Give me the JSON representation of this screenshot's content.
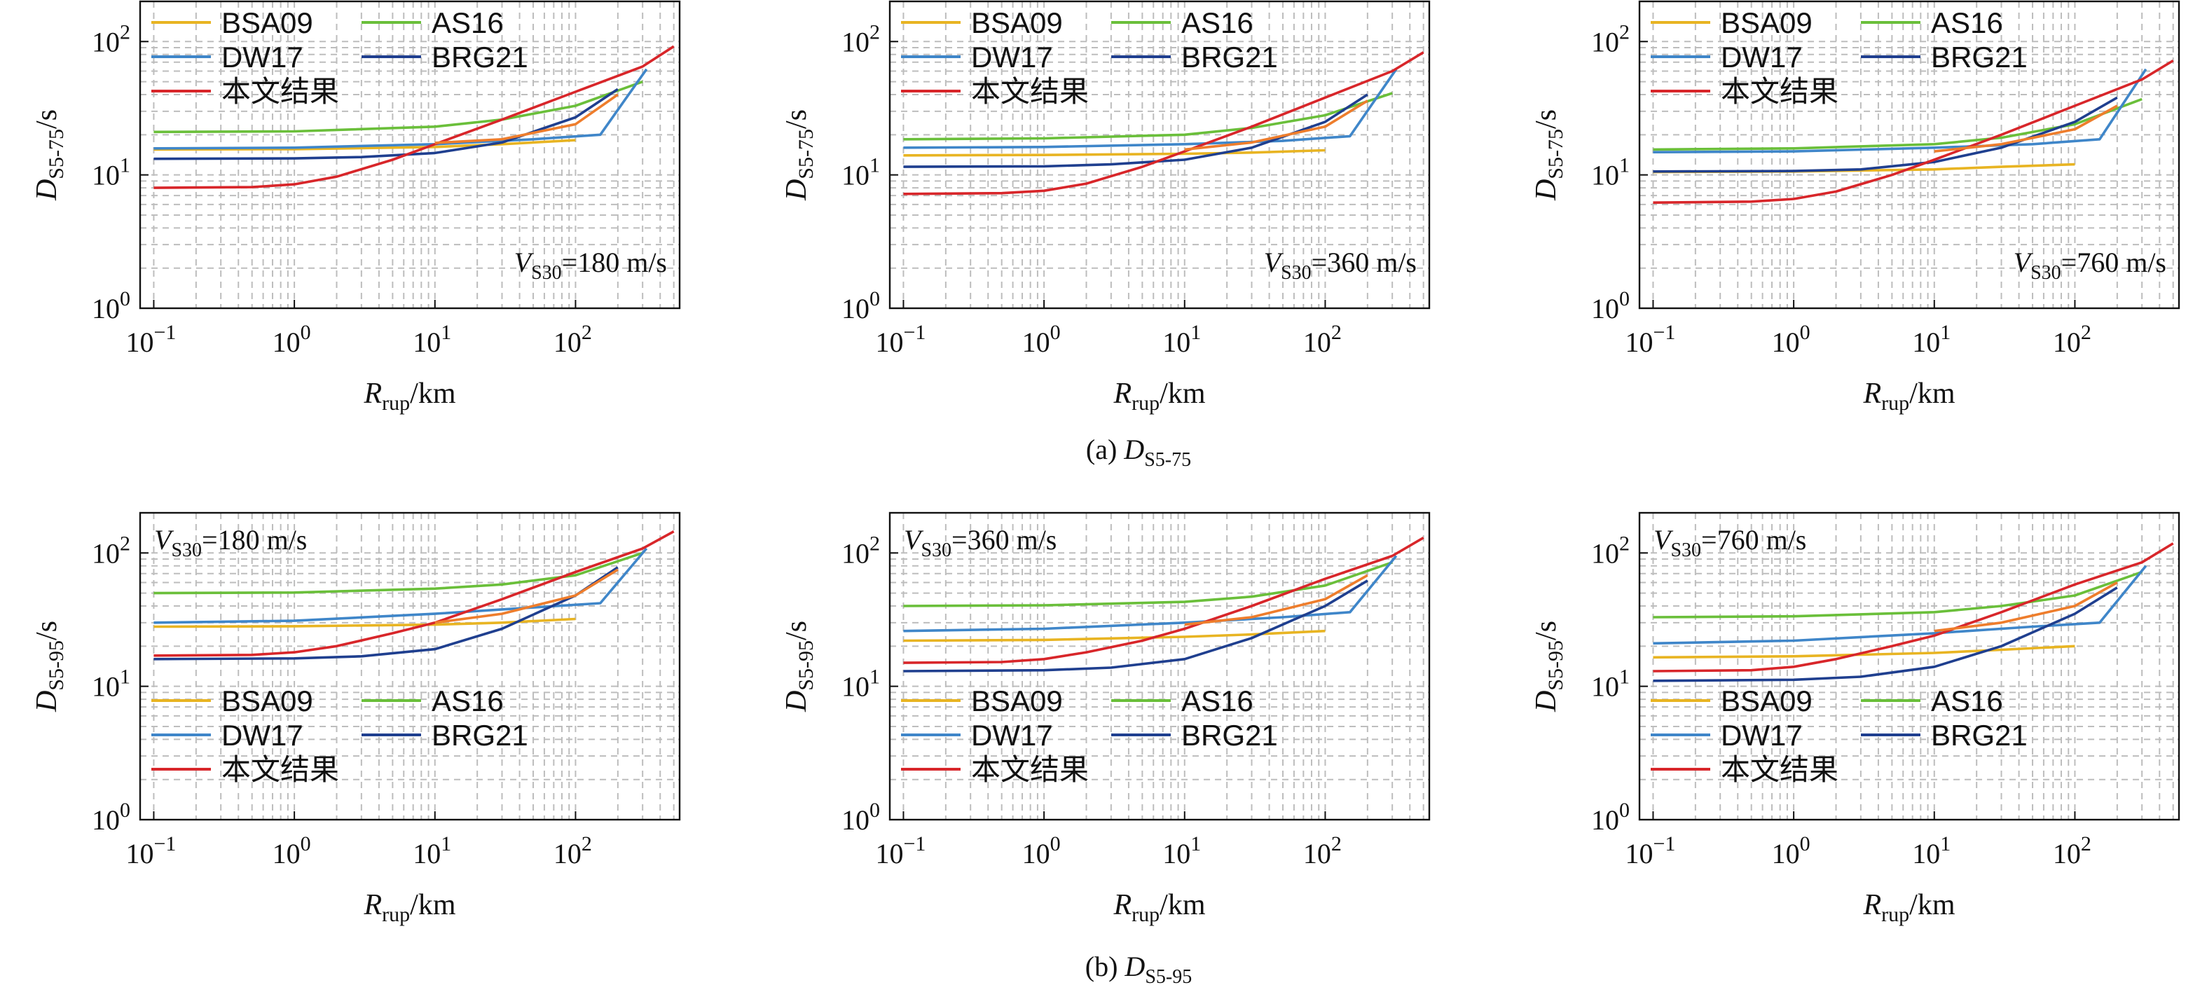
{
  "figure": {
    "row_captions": [
      {
        "prefix": "(a) ",
        "sym": "D",
        "sub": "S5-75"
      },
      {
        "prefix": "(b) ",
        "sym": "D",
        "sub": "S5-95"
      }
    ]
  },
  "common": {
    "xlabel": {
      "sym": "R",
      "sub": "rup",
      "unit": "/km"
    },
    "ylabels": [
      {
        "sym": "D",
        "sub": "S5-75",
        "unit": "/s"
      },
      {
        "sym": "D",
        "sub": "S5-95",
        "unit": "/s"
      }
    ],
    "xticks": [
      {
        "base": "10",
        "exp": "−1",
        "value": 0.1
      },
      {
        "base": "10",
        "exp": "0",
        "value": 1
      },
      {
        "base": "10",
        "exp": "1",
        "value": 10
      },
      {
        "base": "10",
        "exp": "2",
        "value": 100
      }
    ],
    "yticks": [
      {
        "base": "10",
        "exp": "0",
        "value": 1
      },
      {
        "base": "10",
        "exp": "1",
        "value": 10
      },
      {
        "base": "10",
        "exp": "2",
        "value": 100
      }
    ],
    "series_colors": {
      "BSA09": "#e8b422",
      "AS16": "#6abf3a",
      "DW17": "#3f86c9",
      "BRG21": "#1f3f8f",
      "本文结果": "#d8262a",
      "extra": "#ee7d2c"
    },
    "legend_entries": [
      "BSA09",
      "AS16",
      "DW17",
      "BRG21",
      "本文结果"
    ]
  },
  "chart_data": [
    {
      "type": "line",
      "panel": "a1",
      "scale": "log-log",
      "xlim": [
        0.08,
        550
      ],
      "ylim": [
        1,
        200
      ],
      "grid": true,
      "legend": "top-left",
      "vs30_label": {
        "sym": "V",
        "sub": "S30",
        "value": "=180 m/s",
        "position": "bottom-right"
      },
      "series": [
        {
          "name": "BSA09",
          "x": [
            0.1,
            1,
            10,
            30,
            100
          ],
          "y": [
            15.5,
            15.6,
            16.2,
            17,
            18.2
          ]
        },
        {
          "name": "AS16",
          "x": [
            0.1,
            1,
            10,
            30,
            100,
            300
          ],
          "y": [
            21,
            21.2,
            23,
            26,
            33,
            50
          ]
        },
        {
          "name": "DW17",
          "x": [
            0.1,
            1,
            10,
            50,
            150,
            320
          ],
          "y": [
            15.8,
            16,
            17,
            18.5,
            20,
            62
          ]
        },
        {
          "name": "BRG21",
          "x": [
            0.1,
            1,
            3,
            10,
            30,
            100,
            200
          ],
          "y": [
            13.2,
            13.3,
            13.6,
            14.6,
            17.5,
            27,
            44
          ]
        },
        {
          "name": "本文结果",
          "x": [
            0.1,
            0.5,
            1,
            2,
            5,
            10,
            30,
            100,
            300,
            500
          ],
          "y": [
            8,
            8.1,
            8.5,
            9.7,
            13,
            17,
            26,
            42,
            65,
            92
          ]
        },
        {
          "name": "",
          "color_key": "extra",
          "x": [
            10,
            30,
            100,
            200
          ],
          "y": [
            17.4,
            18.5,
            24,
            40
          ]
        }
      ]
    },
    {
      "type": "line",
      "panel": "a2",
      "scale": "log-log",
      "xlim": [
        0.08,
        550
      ],
      "ylim": [
        1,
        200
      ],
      "grid": true,
      "legend": "top-left",
      "vs30_label": {
        "sym": "V",
        "sub": "S30",
        "value": "=360 m/s",
        "position": "bottom-right"
      },
      "series": [
        {
          "name": "BSA09",
          "x": [
            0.1,
            1,
            10,
            30,
            100
          ],
          "y": [
            14,
            14.1,
            14.4,
            14.7,
            15.3
          ]
        },
        {
          "name": "AS16",
          "x": [
            0.1,
            1,
            10,
            30,
            100,
            300
          ],
          "y": [
            18.5,
            18.8,
            20,
            22.5,
            28,
            41
          ]
        },
        {
          "name": "DW17",
          "x": [
            0.1,
            1,
            10,
            50,
            150,
            320
          ],
          "y": [
            16,
            16.2,
            17,
            18,
            19.5,
            62
          ]
        },
        {
          "name": "BRG21",
          "x": [
            0.1,
            1,
            3,
            10,
            30,
            100,
            200
          ],
          "y": [
            11.5,
            11.6,
            12,
            13,
            16,
            25,
            40
          ]
        },
        {
          "name": "本文结果",
          "x": [
            0.1,
            0.5,
            1,
            2,
            5,
            10,
            30,
            100,
            300,
            500
          ],
          "y": [
            7.2,
            7.3,
            7.6,
            8.6,
            11.5,
            15,
            23,
            38,
            60,
            83
          ]
        },
        {
          "name": "",
          "color_key": "extra",
          "x": [
            10,
            30,
            100,
            200
          ],
          "y": [
            15.5,
            17.5,
            23,
            36
          ]
        }
      ]
    },
    {
      "type": "line",
      "panel": "a3",
      "scale": "log-log",
      "xlim": [
        0.08,
        550
      ],
      "ylim": [
        1,
        200
      ],
      "grid": true,
      "legend": "top-left",
      "vs30_label": {
        "sym": "V",
        "sub": "S30",
        "value": "=760 m/s",
        "position": "bottom-right"
      },
      "series": [
        {
          "name": "BSA09",
          "x": [
            0.1,
            1,
            10,
            30,
            100
          ],
          "y": [
            10.5,
            10.6,
            11,
            11.5,
            12
          ]
        },
        {
          "name": "AS16",
          "x": [
            0.1,
            1,
            10,
            30,
            100,
            300
          ],
          "y": [
            15.5,
            15.8,
            17,
            19,
            24,
            37
          ]
        },
        {
          "name": "DW17",
          "x": [
            0.1,
            1,
            10,
            50,
            150,
            320
          ],
          "y": [
            14.8,
            15,
            16,
            17,
            18.5,
            62
          ]
        },
        {
          "name": "BRG21",
          "x": [
            0.1,
            1,
            3,
            10,
            30,
            100,
            200
          ],
          "y": [
            10.6,
            10.7,
            11,
            12.5,
            16,
            25,
            38
          ]
        },
        {
          "name": "本文结果",
          "x": [
            0.1,
            0.5,
            1,
            2,
            5,
            10,
            30,
            100,
            300,
            500
          ],
          "y": [
            6.2,
            6.3,
            6.6,
            7.5,
            10,
            13,
            20,
            33,
            52,
            72
          ]
        },
        {
          "name": "",
          "color_key": "extra",
          "x": [
            10,
            30,
            100,
            200
          ],
          "y": [
            15,
            17,
            22,
            33
          ]
        }
      ]
    },
    {
      "type": "line",
      "panel": "b1",
      "scale": "log-log",
      "xlim": [
        0.08,
        550
      ],
      "ylim": [
        1,
        200
      ],
      "grid": true,
      "legend": "bottom-left",
      "vs30_label": {
        "sym": "V",
        "sub": "S30",
        "value": "=180 m/s",
        "position": "top-left"
      },
      "series": [
        {
          "name": "BSA09",
          "x": [
            0.1,
            1,
            10,
            30,
            100
          ],
          "y": [
            28,
            28.2,
            29,
            30,
            32
          ]
        },
        {
          "name": "AS16",
          "x": [
            0.1,
            1,
            10,
            30,
            100,
            300
          ],
          "y": [
            50,
            50.5,
            54,
            58,
            68,
            100
          ]
        },
        {
          "name": "DW17",
          "x": [
            0.1,
            1,
            10,
            50,
            150,
            320
          ],
          "y": [
            30,
            31,
            35,
            39,
            42,
            108
          ]
        },
        {
          "name": "BRG21",
          "x": [
            0.1,
            1,
            3,
            10,
            30,
            100,
            200
          ],
          "y": [
            16,
            16.2,
            16.8,
            19,
            27,
            48,
            78
          ]
        },
        {
          "name": "本文结果",
          "x": [
            0.1,
            0.5,
            1,
            2,
            5,
            10,
            30,
            100,
            300,
            500
          ],
          "y": [
            17,
            17.2,
            18,
            20,
            25,
            30,
            45,
            72,
            108,
            145
          ]
        },
        {
          "name": "",
          "color_key": "extra",
          "x": [
            10,
            30,
            100,
            200
          ],
          "y": [
            30,
            35,
            48,
            75
          ]
        }
      ]
    },
    {
      "type": "line",
      "panel": "b2",
      "scale": "log-log",
      "xlim": [
        0.08,
        550
      ],
      "ylim": [
        1,
        200
      ],
      "grid": true,
      "legend": "bottom-left",
      "vs30_label": {
        "sym": "V",
        "sub": "S30",
        "value": "=360 m/s",
        "position": "top-left"
      },
      "series": [
        {
          "name": "BSA09",
          "x": [
            0.1,
            1,
            10,
            30,
            100
          ],
          "y": [
            22,
            22.3,
            23.5,
            24.5,
            26
          ]
        },
        {
          "name": "AS16",
          "x": [
            0.1,
            1,
            10,
            30,
            100,
            300
          ],
          "y": [
            40,
            40.5,
            43,
            47,
            57,
            85
          ]
        },
        {
          "name": "DW17",
          "x": [
            0.1,
            1,
            10,
            50,
            150,
            320
          ],
          "y": [
            26,
            27,
            30,
            33,
            36,
            95
          ]
        },
        {
          "name": "BRG21",
          "x": [
            0.1,
            1,
            3,
            10,
            30,
            100,
            200
          ],
          "y": [
            13,
            13.2,
            13.8,
            16,
            23,
            40,
            62
          ]
        },
        {
          "name": "本文结果",
          "x": [
            0.1,
            0.5,
            1,
            2,
            5,
            10,
            30,
            100,
            300,
            500
          ],
          "y": [
            15,
            15.2,
            16,
            18,
            22,
            27,
            40,
            64,
            95,
            130
          ]
        },
        {
          "name": "",
          "color_key": "extra",
          "x": [
            10,
            30,
            100,
            200
          ],
          "y": [
            29,
            33,
            45,
            68
          ]
        }
      ]
    },
    {
      "type": "line",
      "panel": "b3",
      "scale": "log-log",
      "xlim": [
        0.08,
        550
      ],
      "ylim": [
        1,
        200
      ],
      "grid": true,
      "legend": "bottom-left",
      "vs30_label": {
        "sym": "V",
        "sub": "S30",
        "value": "=760 m/s",
        "position": "top-left"
      },
      "series": [
        {
          "name": "BSA09",
          "x": [
            0.1,
            1,
            10,
            30,
            100
          ],
          "y": [
            16.5,
            16.8,
            17.8,
            18.8,
            20
          ]
        },
        {
          "name": "AS16",
          "x": [
            0.1,
            1,
            10,
            30,
            100,
            300
          ],
          "y": [
            33,
            33.5,
            36,
            40,
            48,
            72
          ]
        },
        {
          "name": "DW17",
          "x": [
            0.1,
            1,
            10,
            50,
            150,
            320
          ],
          "y": [
            21,
            22,
            25,
            28,
            30,
            80
          ]
        },
        {
          "name": "BRG21",
          "x": [
            0.1,
            1,
            3,
            10,
            30,
            100,
            200
          ],
          "y": [
            11,
            11.2,
            11.8,
            14,
            20,
            35,
            55
          ]
        },
        {
          "name": "本文结果",
          "x": [
            0.1,
            0.5,
            1,
            2,
            5,
            10,
            30,
            100,
            300,
            500
          ],
          "y": [
            13,
            13.2,
            14,
            16,
            20,
            24,
            36,
            58,
            85,
            118
          ]
        },
        {
          "name": "",
          "color_key": "extra",
          "x": [
            10,
            30,
            100,
            200
          ],
          "y": [
            26,
            30,
            40,
            60
          ]
        }
      ]
    }
  ]
}
